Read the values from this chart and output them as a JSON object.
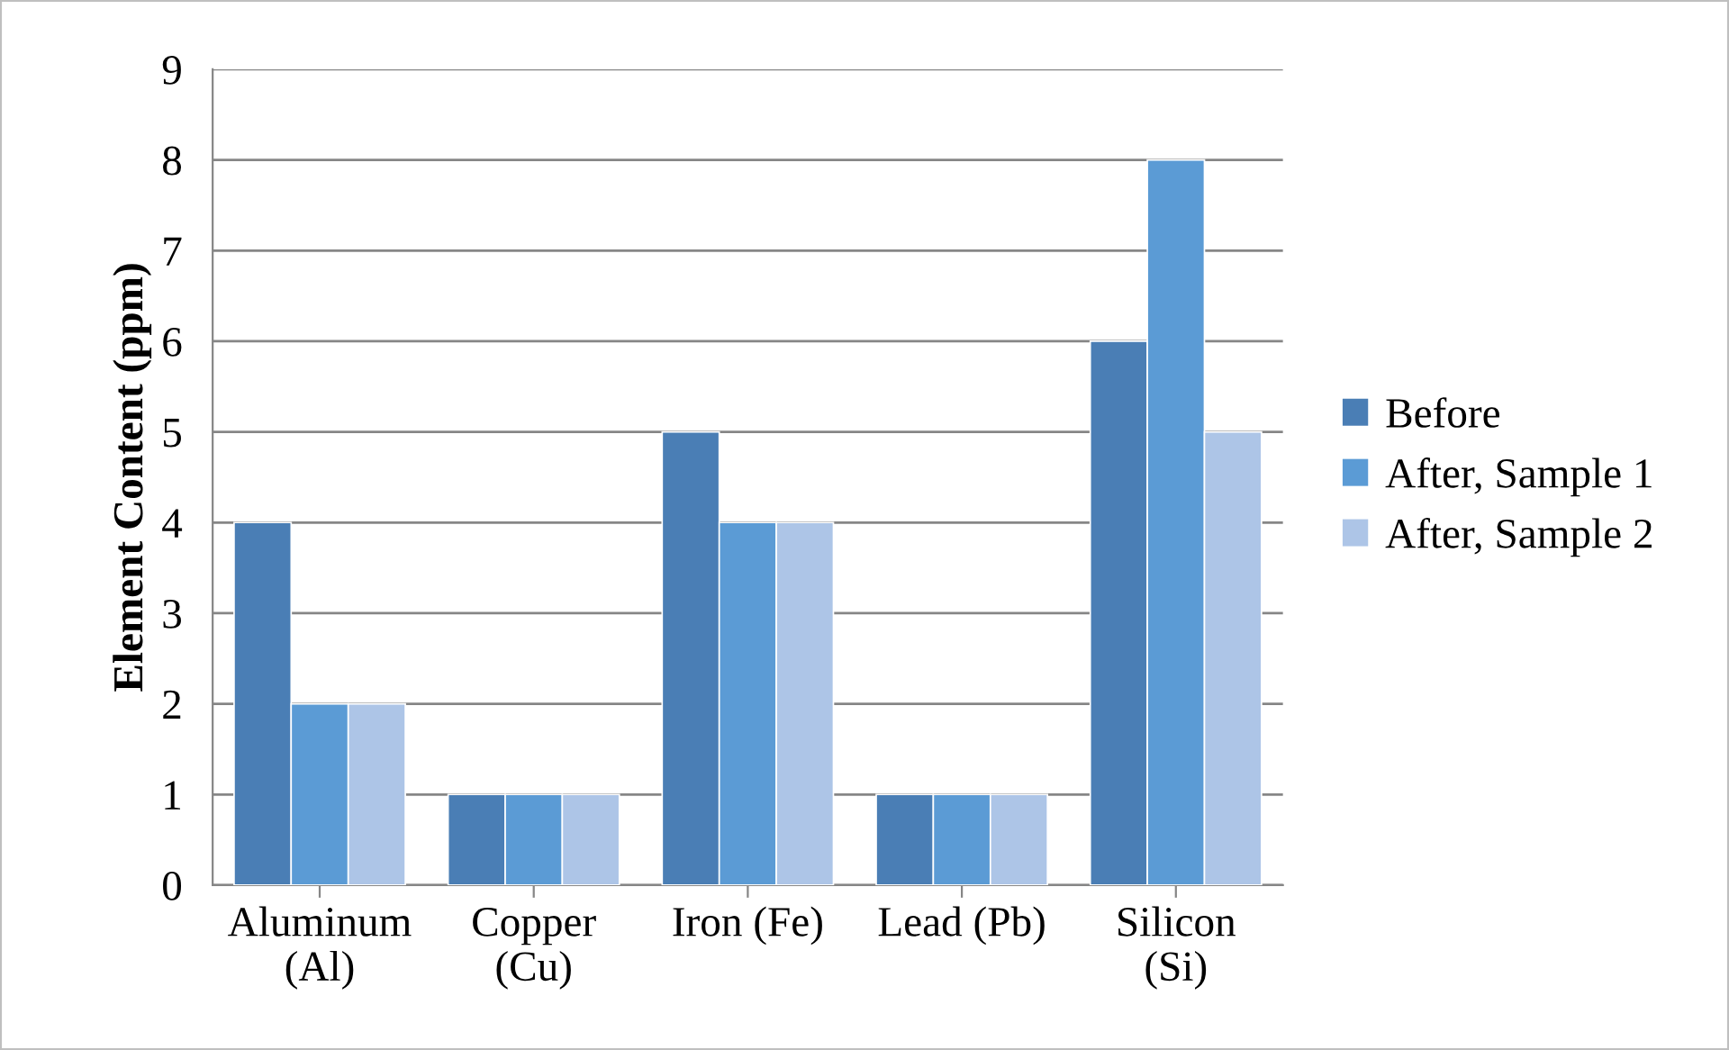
{
  "chart_data": {
    "type": "bar",
    "ylabel": "Element Content (ppm)",
    "categories": [
      "Aluminum\n(Al)",
      "Copper\n(Cu)",
      "Iron (Fe)",
      "Lead (Pb)",
      "Silicon\n(Si)"
    ],
    "series": [
      {
        "name": "Before",
        "color": "#4a7eb5",
        "values": [
          4,
          1,
          5,
          1,
          6
        ]
      },
      {
        "name": "After, Sample 1",
        "color": "#5b9bd5",
        "values": [
          2,
          1,
          4,
          1,
          8
        ]
      },
      {
        "name": "After, Sample 2",
        "color": "#adc5e7",
        "values": [
          2,
          1,
          4,
          1,
          5
        ]
      }
    ],
    "ylim": [
      0,
      9
    ],
    "yticks": [
      0,
      1,
      2,
      3,
      4,
      5,
      6,
      7,
      8,
      9
    ],
    "grid": "y",
    "legend": "right"
  }
}
